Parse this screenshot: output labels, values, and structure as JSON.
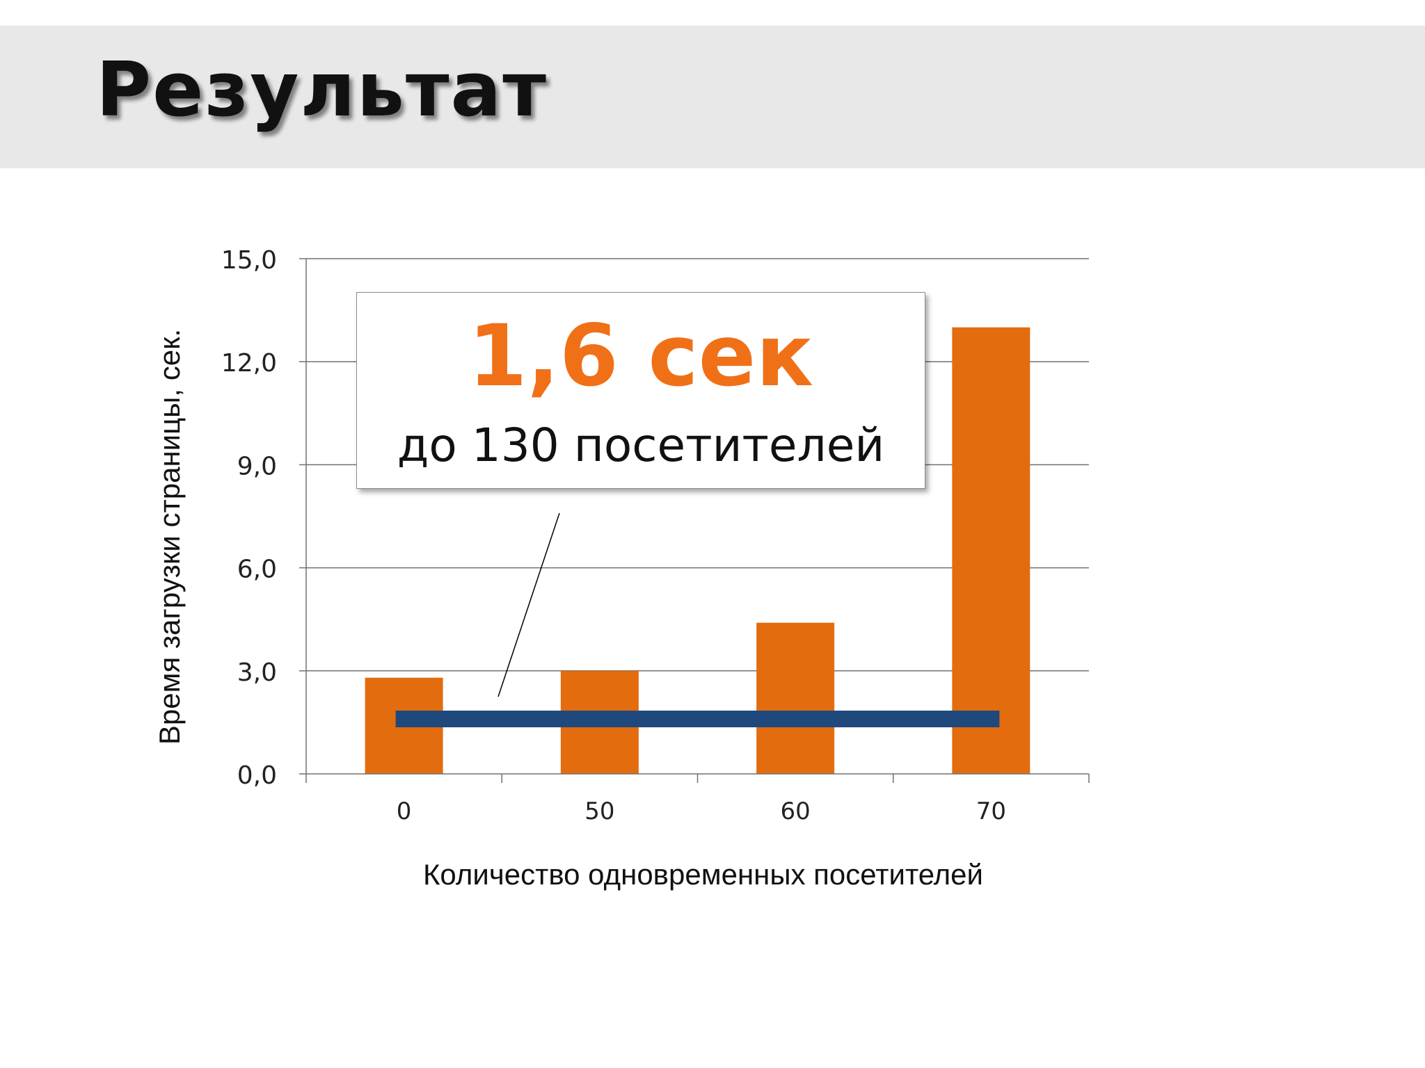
{
  "slide": {
    "title": "Результат"
  },
  "callout": {
    "value": "1,6 сек",
    "subtitle": "до 130 посетителей"
  },
  "colors": {
    "bar": "#e36c0e",
    "line": "#1f497d",
    "callout_value": "#f07018",
    "title_band": "#e8e8e8"
  },
  "chart_data": {
    "type": "bar",
    "categories": [
      "0",
      "50",
      "60",
      "70"
    ],
    "series": [
      {
        "type": "bar",
        "values": [
          2.8,
          3.0,
          4.4,
          13.0
        ]
      },
      {
        "type": "line",
        "values": [
          1.6,
          1.6,
          1.6,
          1.6
        ]
      }
    ],
    "ylim": [
      0,
      15
    ],
    "yticks": [
      "0,0",
      "3,0",
      "6,0",
      "9,0",
      "12,0",
      "15,0"
    ],
    "ytick_values": [
      0,
      3,
      6,
      9,
      12,
      15
    ],
    "xlabel": "Количество одновременных посетителей",
    "ylabel": "Время загрузки страницы, сек.",
    "grid": true,
    "legend": "none"
  }
}
